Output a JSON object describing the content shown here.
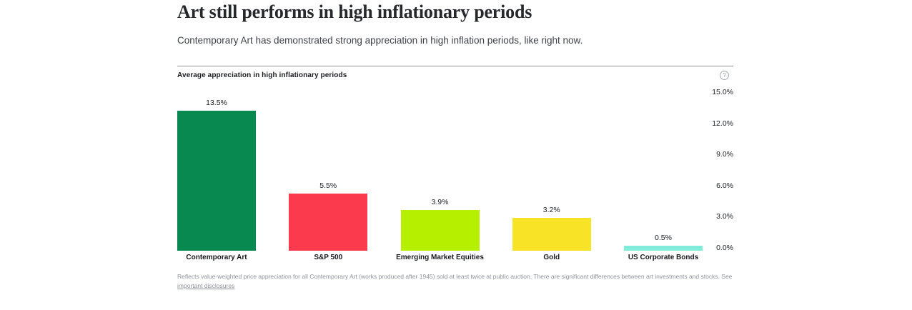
{
  "header": {
    "title": "Art still performs in high inflationary periods",
    "subtitle": "Contemporary Art has demonstrated strong appreciation in high inflation periods, like right now."
  },
  "chart": {
    "heading": "Average appreciation in high inflationary periods",
    "help_icon_glyph": "?"
  },
  "chart_data": {
    "type": "bar",
    "title": "Average appreciation in high inflationary periods",
    "categories": [
      "Contemporary Art",
      "S&P 500",
      "Emerging Market Equities",
      "Gold",
      "US Corporate Bonds"
    ],
    "values": [
      13.5,
      5.5,
      3.9,
      3.2,
      0.5
    ],
    "value_labels": [
      "13.5%",
      "5.5%",
      "3.9%",
      "3.2%",
      "0.5%"
    ],
    "bar_colors": [
      "#08894F",
      "#FB3A4D",
      "#B6F000",
      "#F9E327",
      "#82EDDA"
    ],
    "xlabel": "",
    "ylabel": "",
    "ylim": [
      0,
      15
    ],
    "yticks": [
      0,
      3,
      6,
      9,
      12,
      15
    ],
    "ytick_labels": [
      "0.0%",
      "3.0%",
      "6.0%",
      "9.0%",
      "12.0%",
      "15.0%"
    ],
    "ytick_side": "right",
    "grid": false,
    "legend": false,
    "value_label_position": "above-bar"
  },
  "footnote": {
    "text": "Reflects value-weighted price appreciation for all Contemporary Art (works produced after 1945) sold at least twice at public auction. There are significant differences between art investments and stocks. See ",
    "link_text": "important disclosures"
  }
}
